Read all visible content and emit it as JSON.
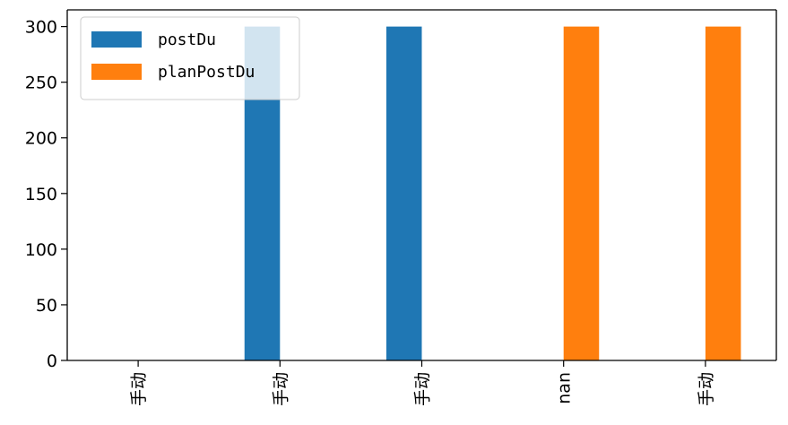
{
  "chart_data": {
    "type": "bar",
    "categories": [
      "手动",
      "手动",
      "手动",
      "nan",
      "手动"
    ],
    "series": [
      {
        "name": "postDu",
        "color": "#1f77b4",
        "values": [
          0,
          300,
          300,
          0,
          0
        ]
      },
      {
        "name": "planPostDu",
        "color": "#ff7f0e",
        "values": [
          0,
          0,
          0,
          300,
          300
        ]
      }
    ],
    "yticks": [
      0,
      50,
      100,
      150,
      200,
      250,
      300
    ],
    "ylim": [
      0,
      315
    ],
    "grid": false,
    "legend_position": "top-left"
  }
}
